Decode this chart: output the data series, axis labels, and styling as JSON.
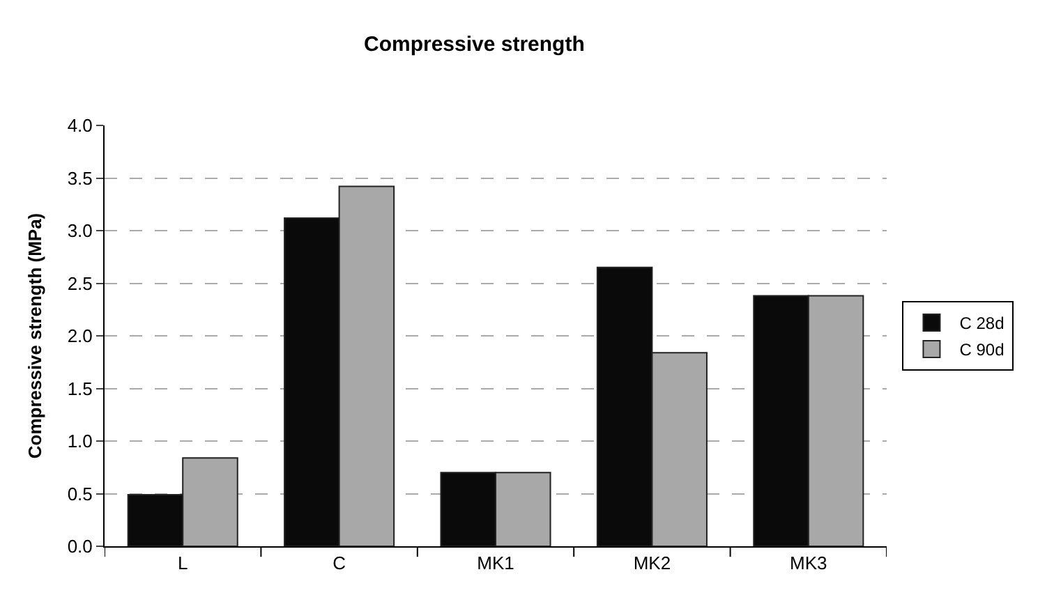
{
  "chart_data": {
    "type": "bar",
    "title": "Compressive strength",
    "ylabel": "Compressive strength (MPa)",
    "categories": [
      "L",
      "C",
      "MK1",
      "MK2",
      "MK3"
    ],
    "series": [
      {
        "name": "C 28d",
        "color": "#0a0a0a",
        "values": [
          0.49,
          3.12,
          0.7,
          2.65,
          2.38
        ]
      },
      {
        "name": "C 90d",
        "color": "#a8a8a8",
        "values": [
          0.84,
          3.42,
          0.7,
          1.84,
          2.38
        ]
      }
    ],
    "ylim": [
      0,
      4
    ],
    "yticks": [
      {
        "value": 0,
        "label": "0.0"
      },
      {
        "value": 0.5,
        "label": "0.5"
      },
      {
        "value": 1,
        "label": "1.0"
      },
      {
        "value": 1.5,
        "label": "1.5"
      },
      {
        "value": 2,
        "label": "2.0"
      },
      {
        "value": 2.5,
        "label": "2.5"
      },
      {
        "value": 3,
        "label": "3.0"
      },
      {
        "value": 3.5,
        "label": "3.5"
      },
      {
        "value": 4,
        "label": "4.0"
      }
    ],
    "grid": "y",
    "legend": "right"
  }
}
